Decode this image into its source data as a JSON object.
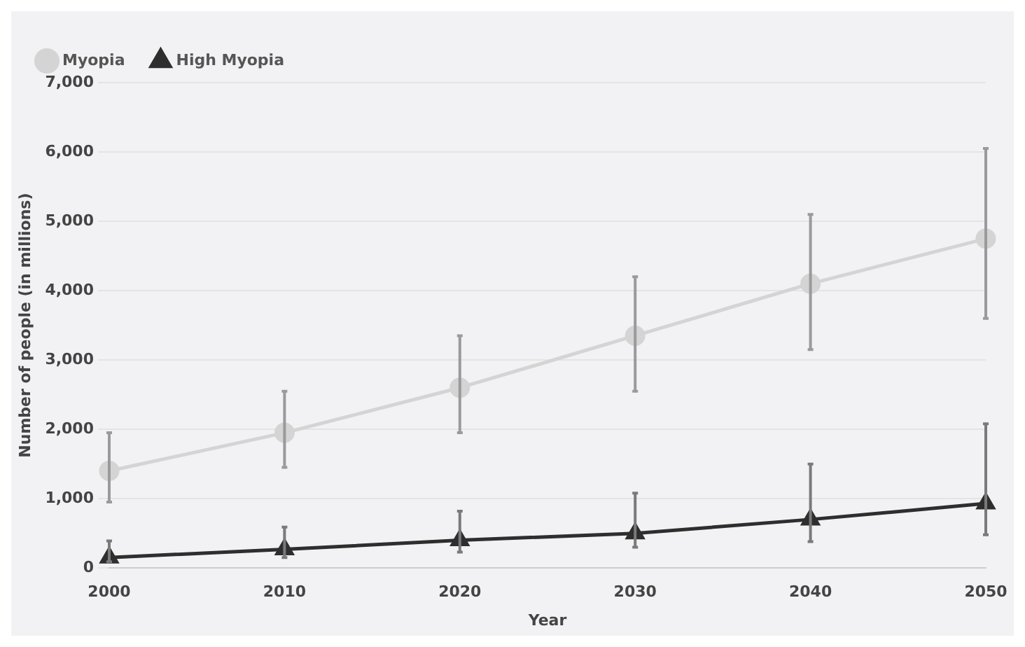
{
  "chart_data": {
    "type": "line",
    "xlabel": "Year",
    "ylabel": "Number of people (in millions)",
    "categories": [
      "2000",
      "2010",
      "2020",
      "2030",
      "2040",
      "2050"
    ],
    "series": [
      {
        "name": "Myopia",
        "color": "#d4d4d4",
        "marker": "circle",
        "values": [
          1400,
          1950,
          2600,
          3350,
          4100,
          4750
        ],
        "errors": [
          [
            950,
            1950
          ],
          [
            1450,
            2550
          ],
          [
            1950,
            3350
          ],
          [
            2550,
            4200
          ],
          [
            3150,
            5100
          ],
          [
            3600,
            6050
          ]
        ]
      },
      {
        "name": "High Myopia",
        "color": "#2e2e2e",
        "marker": "triangle",
        "values": [
          150,
          270,
          400,
          500,
          700,
          930
        ],
        "errors": [
          [
            90,
            390
          ],
          [
            150,
            590
          ],
          [
            230,
            820
          ],
          [
            300,
            1080
          ],
          [
            380,
            1500
          ],
          [
            480,
            2080
          ]
        ]
      }
    ],
    "ylim": [
      0,
      7000
    ],
    "yticks": [
      0,
      {
        "value": 1000,
        "label": "1,000"
      },
      {
        "value": 2000,
        "label": "2,000"
      },
      {
        "value": 3000,
        "label": "3,000"
      },
      {
        "value": 4000,
        "label": "4,000"
      },
      {
        "value": 5000,
        "label": "5,000"
      },
      {
        "value": 6000,
        "label": "6,000"
      },
      {
        "value": 7000,
        "label": "7,000"
      }
    ],
    "grid": "y",
    "legend": "top left"
  }
}
